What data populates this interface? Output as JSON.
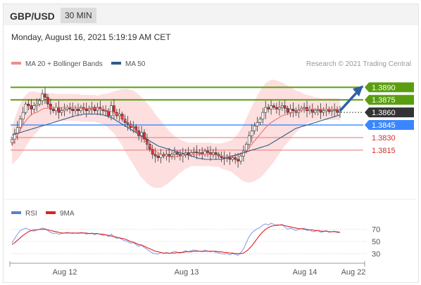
{
  "header": {
    "symbol": "GBP/USD",
    "timeframe": "30 MIN"
  },
  "timestamp": "Monday, August 16, 2021 5:19:19 AM CET",
  "legend": {
    "items": [
      {
        "label": "MA 20 + Bollinger Bands",
        "color": "#f28b8b"
      },
      {
        "label": "MA 50",
        "color": "#2e5c8a"
      }
    ],
    "copyright": "Research © 2021 Trading Central"
  },
  "rsi_legend": {
    "items": [
      {
        "label": "RSI",
        "color": "#5b7fd6"
      },
      {
        "label": "9MA",
        "color": "#e02020"
      }
    ]
  },
  "colors": {
    "resistance": "#5a9e10",
    "current": "#333333",
    "pivot": "#3a86ff",
    "support": "#e57373",
    "candle_up": "#ffffff",
    "candle_down": "#e03030",
    "arrow": "#2f5fa5",
    "band_fill": "#fdd9d9"
  },
  "chart_data": [
    {
      "type": "candlestick",
      "ylim": [
        1.3768,
        1.3902
      ],
      "x_ticks": [
        "Aug 12",
        "Aug 13",
        "Aug 14",
        "Aug 22"
      ],
      "price_levels": [
        {
          "label": "1.3890",
          "value": 1.389,
          "kind": "resistance"
        },
        {
          "label": "1.3875",
          "value": 1.3875,
          "kind": "resistance"
        },
        {
          "label": "1.3860",
          "value": 1.386,
          "kind": "current"
        },
        {
          "label": "1.3845",
          "value": 1.3845,
          "kind": "pivot"
        },
        {
          "label": "1.3830",
          "value": 1.383,
          "kind": "support"
        },
        {
          "label": "1.3815",
          "value": 1.3815,
          "kind": "support"
        }
      ],
      "forecast_arrow": {
        "from": 1.3862,
        "to": 1.3889
      },
      "candle_count": 120,
      "candles_close": [
        1.3828,
        1.3835,
        1.3842,
        1.3852,
        1.386,
        1.387,
        1.3868,
        1.3864,
        1.3868,
        1.387,
        1.3874,
        1.3882,
        1.3878,
        1.387,
        1.3864,
        1.3862,
        1.3866,
        1.386,
        1.3862,
        1.3864,
        1.3866,
        1.3864,
        1.3862,
        1.3864,
        1.3862,
        1.3866,
        1.3864,
        1.3862,
        1.3864,
        1.3866,
        1.3862,
        1.3866,
        1.3864,
        1.3862,
        1.3862,
        1.3856,
        1.3868,
        1.386,
        1.3856,
        1.3858,
        1.3852,
        1.3848,
        1.3846,
        1.3842,
        1.3843,
        1.3838,
        1.3832,
        1.3836,
        1.3828,
        1.3822,
        1.3816,
        1.381,
        1.3808,
        1.3806,
        1.381,
        1.3808,
        1.381,
        1.3808,
        1.381,
        1.3812,
        1.381,
        1.3808,
        1.381,
        1.3812,
        1.381,
        1.3812,
        1.3813,
        1.3812,
        1.3812,
        1.381,
        1.3814,
        1.3812,
        1.381,
        1.3812,
        1.381,
        1.3808,
        1.3806,
        1.3805,
        1.3806,
        1.3804,
        1.3806,
        1.3804,
        1.3802,
        1.3808,
        1.3814,
        1.3822,
        1.3832,
        1.3838,
        1.3844,
        1.3848,
        1.3852,
        1.386,
        1.3866,
        1.3864,
        1.3868,
        1.3866,
        1.3864,
        1.3866,
        1.3868,
        1.3865,
        1.386,
        1.3864,
        1.3862,
        1.386,
        1.3863,
        1.3865,
        1.3866,
        1.3862,
        1.3864,
        1.386,
        1.3862,
        1.3863,
        1.386,
        1.3862,
        1.3864,
        1.3861,
        1.3862,
        1.3863,
        1.386,
        1.3861
      ],
      "ma20": [
        1.382,
        1.3827,
        1.3833,
        1.3839,
        1.3845,
        1.385,
        1.3854,
        1.3857,
        1.3859,
        1.386,
        1.3862,
        1.3864,
        1.3865,
        1.3865,
        1.3866,
        1.3866,
        1.3866,
        1.3866,
        1.3866,
        1.3866,
        1.3866,
        1.3866,
        1.3866,
        1.3866,
        1.3866,
        1.3865,
        1.3865,
        1.3865,
        1.3865,
        1.3865,
        1.3865,
        1.3864,
        1.3864,
        1.3864,
        1.3863,
        1.3862,
        1.3861,
        1.386,
        1.3858,
        1.3856,
        1.3854,
        1.3851,
        1.3848,
        1.3845,
        1.3842,
        1.3838,
        1.3834,
        1.383,
        1.3827,
        1.3823,
        1.382,
        1.3817,
        1.3814,
        1.3812,
        1.381,
        1.3809,
        1.3808,
        1.3807,
        1.3807,
        1.3807,
        1.3807,
        1.3808,
        1.3808,
        1.3809,
        1.3809,
        1.381,
        1.381,
        1.381,
        1.381,
        1.381,
        1.381,
        1.381,
        1.381,
        1.3809,
        1.3809,
        1.3809,
        1.3808,
        1.3808,
        1.3808,
        1.3808,
        1.3808,
        1.3808,
        1.3809,
        1.381,
        1.3812,
        1.3815,
        1.3818,
        1.3822,
        1.3826,
        1.383,
        1.3834,
        1.3838,
        1.3842,
        1.3845,
        1.3848,
        1.385,
        1.3852,
        1.3854,
        1.3856,
        1.3857,
        1.3858,
        1.3859,
        1.386,
        1.3861,
        1.3862,
        1.3863,
        1.3863,
        1.3864,
        1.3864,
        1.3864,
        1.3864,
        1.3864,
        1.3864,
        1.3864,
        1.3864,
        1.3864,
        1.3864,
        1.3864,
        1.3864,
        1.3863
      ],
      "ma50": [
        1.3833,
        1.3834,
        1.3835,
        1.3836,
        1.3837,
        1.3838,
        1.3839,
        1.384,
        1.3841,
        1.3842,
        1.3843,
        1.3844,
        1.3845,
        1.3846,
        1.3847,
        1.3848,
        1.3849,
        1.385,
        1.3851,
        1.3852,
        1.3853,
        1.3854,
        1.3855,
        1.3856,
        1.3857,
        1.3857,
        1.3858,
        1.3858,
        1.3858,
        1.3858,
        1.3858,
        1.3858,
        1.3858,
        1.3857,
        1.3856,
        1.3855,
        1.3854,
        1.3852,
        1.385,
        1.3848,
        1.3846,
        1.3844,
        1.3842,
        1.384,
        1.3838,
        1.3836,
        1.3834,
        1.3832,
        1.383,
        1.3828,
        1.3826,
        1.3824,
        1.3822,
        1.382,
        1.3819,
        1.3818,
        1.3817,
        1.3816,
        1.3815,
        1.3814,
        1.3813,
        1.3812,
        1.3811,
        1.381,
        1.3809,
        1.3808,
        1.3807,
        1.3806,
        1.3805,
        1.3805,
        1.3804,
        1.3804,
        1.3804,
        1.3804,
        1.3804,
        1.3804,
        1.3804,
        1.3805,
        1.3806,
        1.3807,
        1.3808,
        1.3809,
        1.381,
        1.3811,
        1.3812,
        1.3813,
        1.3814,
        1.3815,
        1.3816,
        1.3817,
        1.3818,
        1.3819,
        1.382,
        1.3821,
        1.3823,
        1.3825,
        1.3827,
        1.3829,
        1.3831,
        1.3833,
        1.3835,
        1.3837,
        1.3839,
        1.3841,
        1.3842,
        1.3843,
        1.3844,
        1.3845,
        1.3846,
        1.3847,
        1.3848,
        1.3849,
        1.385,
        1.3851,
        1.3852,
        1.3853,
        1.3854,
        1.3855,
        1.3856,
        1.3857
      ],
      "band_width": [
        0.0022,
        0.0026,
        0.0029,
        0.0031,
        0.0032,
        0.0031,
        0.003,
        0.0028,
        0.0026,
        0.0024,
        0.0022,
        0.002,
        0.0019,
        0.0018,
        0.0017,
        0.0017,
        0.0016,
        0.0016,
        0.0016,
        0.0016,
        0.0016,
        0.0016,
        0.0016,
        0.0016,
        0.0016,
        0.0016,
        0.0016,
        0.0016,
        0.0016,
        0.0016,
        0.0016,
        0.0016,
        0.0017,
        0.0018,
        0.0019,
        0.0021,
        0.0023,
        0.0025,
        0.0028,
        0.0031,
        0.0034,
        0.0037,
        0.004,
        0.0042,
        0.0044,
        0.0046,
        0.0047,
        0.0048,
        0.0048,
        0.0048,
        0.0047,
        0.0046,
        0.0044,
        0.0042,
        0.004,
        0.0037,
        0.0034,
        0.0031,
        0.0028,
        0.0025,
        0.0022,
        0.002,
        0.0018,
        0.0016,
        0.0015,
        0.0014,
        0.0014,
        0.0014,
        0.0014,
        0.0014,
        0.0014,
        0.0014,
        0.0014,
        0.0014,
        0.0014,
        0.0014,
        0.0015,
        0.0016,
        0.0017,
        0.0018,
        0.002,
        0.0023,
        0.0026,
        0.003,
        0.0034,
        0.0038,
        0.0042,
        0.0045,
        0.0048,
        0.005,
        0.0052,
        0.0053,
        0.0053,
        0.0052,
        0.0051,
        0.0049,
        0.0046,
        0.0043,
        0.004,
        0.0037,
        0.0034,
        0.0031,
        0.0028,
        0.0025,
        0.0023,
        0.0021,
        0.0019,
        0.0017,
        0.0016,
        0.0015,
        0.0014,
        0.0014,
        0.0013,
        0.0013,
        0.0013,
        0.0013,
        0.0013,
        0.0013,
        0.0013,
        0.0013
      ]
    },
    {
      "type": "line",
      "name_rsi": "RSI",
      "ylim": [
        20,
        80
      ],
      "y_ticks": [
        {
          "label": "70",
          "value": 70
        },
        {
          "label": "50",
          "value": 50
        },
        {
          "label": "30",
          "value": 30
        }
      ],
      "rsi": [
        48,
        55,
        62,
        68,
        70,
        72,
        70,
        68,
        67,
        69,
        70,
        72,
        71,
        68,
        65,
        63,
        64,
        62,
        63,
        64,
        65,
        64,
        63,
        64,
        63,
        65,
        64,
        62,
        63,
        64,
        61,
        63,
        62,
        60,
        61,
        58,
        62,
        58,
        55,
        56,
        53,
        51,
        50,
        47,
        48,
        45,
        42,
        44,
        40,
        37,
        34,
        31,
        30,
        29,
        32,
        30,
        32,
        30,
        32,
        34,
        32,
        31,
        33,
        35,
        33,
        35,
        36,
        35,
        34,
        33,
        36,
        34,
        33,
        34,
        32,
        31,
        30,
        29,
        30,
        28,
        30,
        29,
        27,
        32,
        38,
        48,
        58,
        64,
        68,
        71,
        73,
        77,
        79,
        77,
        80,
        78,
        76,
        77,
        78,
        74,
        70,
        72,
        70,
        68,
        70,
        71,
        72,
        68,
        69,
        66,
        67,
        68,
        65,
        66,
        68,
        65,
        66,
        67,
        64,
        65
      ],
      "ma9": [
        45,
        48,
        52,
        56,
        60,
        63,
        66,
        68,
        69,
        69,
        70,
        70,
        70,
        69,
        68,
        67,
        66,
        65,
        64,
        64,
        64,
        64,
        64,
        64,
        64,
        64,
        64,
        64,
        63,
        63,
        63,
        63,
        62,
        62,
        61,
        60,
        59,
        58,
        57,
        56,
        55,
        54,
        52,
        50,
        49,
        47,
        45,
        44,
        42,
        40,
        38,
        36,
        34,
        33,
        32,
        31,
        31,
        31,
        31,
        31,
        32,
        32,
        32,
        33,
        33,
        33,
        34,
        34,
        34,
        34,
        34,
        34,
        34,
        34,
        34,
        33,
        33,
        32,
        32,
        31,
        31,
        30,
        30,
        30,
        31,
        34,
        38,
        43,
        49,
        55,
        61,
        66,
        70,
        73,
        75,
        76,
        77,
        77,
        77,
        76,
        75,
        74,
        73,
        72,
        71,
        71,
        70,
        70,
        69,
        69,
        68,
        68,
        67,
        67,
        67,
        66,
        66,
        66,
        66,
        65
      ]
    }
  ]
}
